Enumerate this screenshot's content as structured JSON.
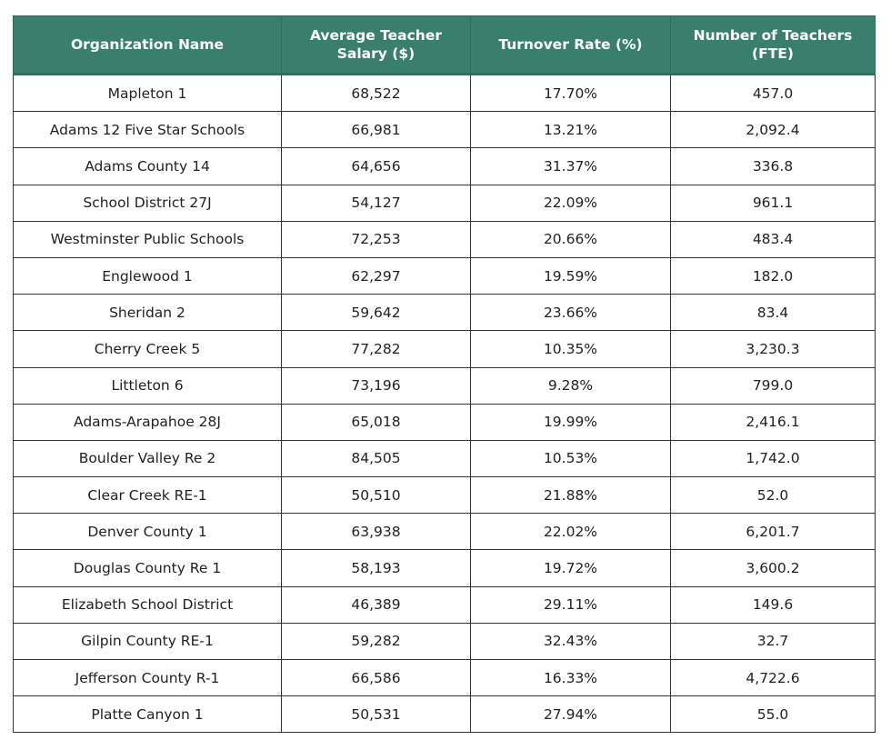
{
  "table": {
    "headers": [
      "Organization Name",
      "Average Teacher Salary ($)",
      "Turnover Rate (%)",
      "Number of Teachers (FTE)"
    ],
    "header_color": "#3a7f6e",
    "rows": [
      [
        "Mapleton 1",
        "68,522",
        "17.70%",
        "457.0"
      ],
      [
        "Adams 12 Five Star Schools",
        "66,981",
        "13.21%",
        "2,092.4"
      ],
      [
        "Adams County 14",
        "64,656",
        "31.37%",
        "336.8"
      ],
      [
        "School District 27J",
        "54,127",
        "22.09%",
        "961.1"
      ],
      [
        "Westminster Public Schools",
        "72,253",
        "20.66%",
        "483.4"
      ],
      [
        "Englewood 1",
        "62,297",
        "19.59%",
        "182.0"
      ],
      [
        "Sheridan 2",
        "59,642",
        "23.66%",
        "83.4"
      ],
      [
        "Cherry Creek 5",
        "77,282",
        "10.35%",
        "3,230.3"
      ],
      [
        "Littleton 6",
        "73,196",
        "9.28%",
        "799.0"
      ],
      [
        "Adams-Arapahoe 28J",
        "65,018",
        "19.99%",
        "2,416.1"
      ],
      [
        "Boulder Valley Re 2",
        "84,505",
        "10.53%",
        "1,742.0"
      ],
      [
        "Clear Creek RE-1",
        "50,510",
        "21.88%",
        "52.0"
      ],
      [
        "Denver County 1",
        "63,938",
        "22.02%",
        "6,201.7"
      ],
      [
        "Douglas County Re 1",
        "58,193",
        "19.72%",
        "3,600.2"
      ],
      [
        "Elizabeth School District",
        "46,389",
        "29.11%",
        "149.6"
      ],
      [
        "Gilpin County RE-1",
        "59,282",
        "32.43%",
        "32.7"
      ],
      [
        "Jefferson County R-1",
        "66,586",
        "16.33%",
        "4,722.6"
      ],
      [
        "Platte Canyon 1",
        "50,531",
        "27.94%",
        "55.0"
      ]
    ]
  }
}
